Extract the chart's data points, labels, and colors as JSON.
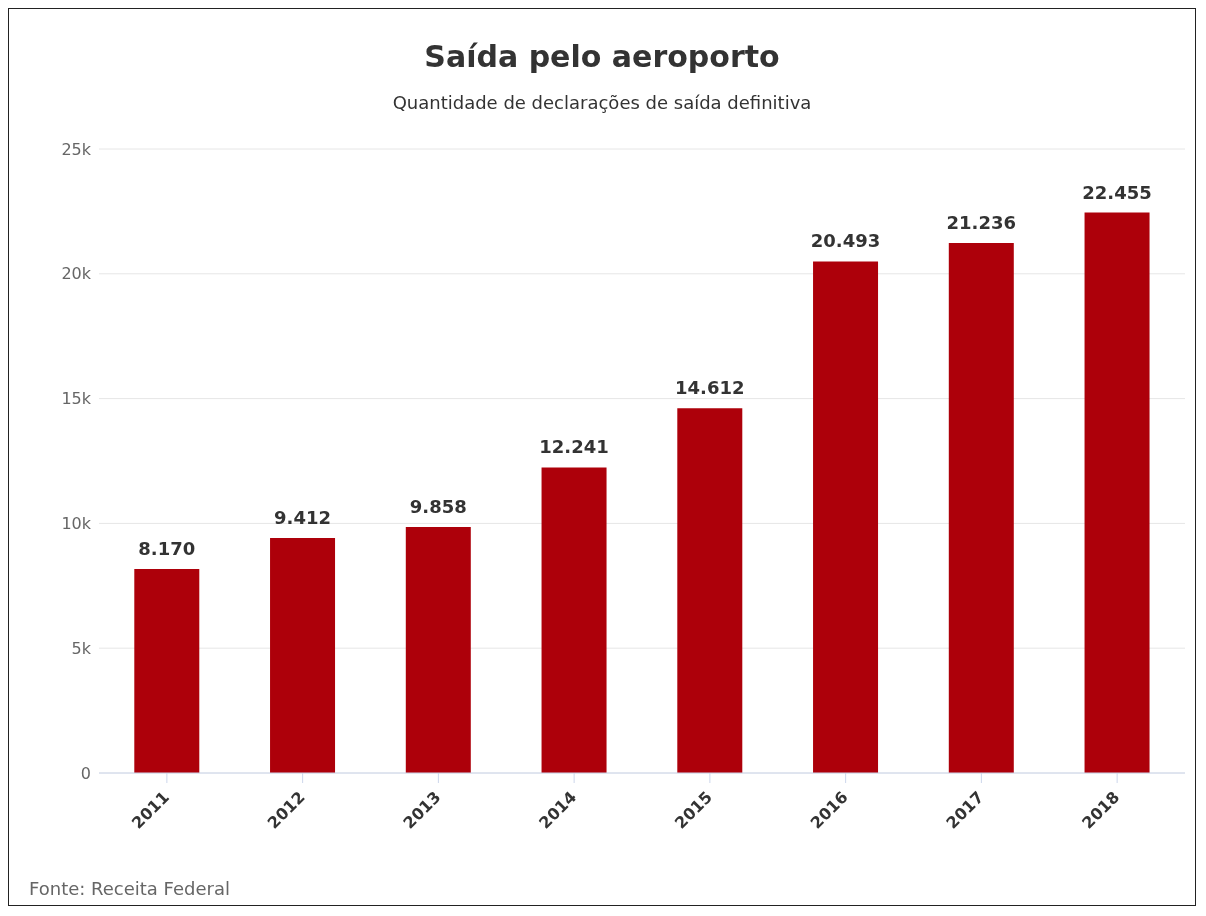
{
  "chart_data": {
    "type": "bar",
    "title": "Saída pelo aeroporto",
    "subtitle": "Quantidade de declarações de saída definitiva",
    "categories": [
      "2011",
      "2012",
      "2013",
      "2014",
      "2015",
      "2016",
      "2017",
      "2018"
    ],
    "values": [
      8170,
      9412,
      9858,
      12241,
      14612,
      20493,
      21236,
      22455
    ],
    "value_labels": [
      "8.170",
      "9.412",
      "9.858",
      "12.241",
      "14.612",
      "20.493",
      "21.236",
      "22.455"
    ],
    "color": "#ad000a",
    "ylim": [
      0,
      25000
    ],
    "yticks": [
      0,
      {
        "value": 5000,
        "label": "5k"
      },
      {
        "value": 10000,
        "label": "10k"
      },
      {
        "value": 15000,
        "label": "15k"
      },
      {
        "value": 20000,
        "label": "20k"
      },
      {
        "value": 25000,
        "label": "25k"
      }
    ],
    "grid": "y",
    "annotations": [
      "Fonte: Receita Federal"
    ]
  }
}
